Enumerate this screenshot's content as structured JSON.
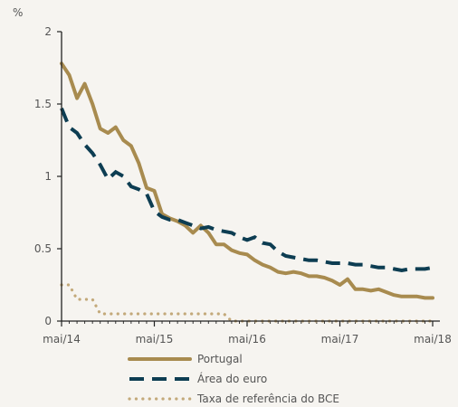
{
  "chart_data": {
    "type": "line",
    "unit": "%",
    "xlabel": "",
    "ylabel": "",
    "ylim": [
      0,
      2
    ],
    "y_ticks": [
      "0",
      "0.5",
      "1",
      "1.5",
      "2"
    ],
    "x_ticks": [
      "mai/14",
      "mai/15",
      "mai/16",
      "mai/17",
      "mai/18"
    ],
    "x_range_months": [
      "2014-05",
      "2018-05"
    ],
    "legend_placement": "bottom",
    "grid": false,
    "colors": {
      "portugal": "#a88b4f",
      "euro": "#0d3d52",
      "bce": "#c3a97a",
      "axis": "#222222"
    },
    "series": [
      {
        "name": "Portugal",
        "style": "solid",
        "x": [
          "2014-05",
          "2014-06",
          "2014-07",
          "2014-08",
          "2014-09",
          "2014-10",
          "2014-11",
          "2014-12",
          "2015-01",
          "2015-02",
          "2015-03",
          "2015-04",
          "2015-05",
          "2015-06",
          "2015-07",
          "2015-08",
          "2015-09",
          "2015-10",
          "2015-11",
          "2015-12",
          "2016-01",
          "2016-02",
          "2016-03",
          "2016-04",
          "2016-05",
          "2016-06",
          "2016-07",
          "2016-08",
          "2016-09",
          "2016-10",
          "2016-11",
          "2016-12",
          "2017-01",
          "2017-02",
          "2017-03",
          "2017-04",
          "2017-05",
          "2017-06",
          "2017-07",
          "2017-08",
          "2017-09",
          "2017-10",
          "2017-11",
          "2017-12",
          "2018-01",
          "2018-02",
          "2018-03",
          "2018-04",
          "2018-05"
        ],
        "values": [
          1.78,
          1.7,
          1.54,
          1.64,
          1.5,
          1.33,
          1.3,
          1.34,
          1.25,
          1.21,
          1.09,
          0.92,
          0.9,
          0.74,
          0.71,
          0.69,
          0.66,
          0.61,
          0.66,
          0.61,
          0.53,
          0.53,
          0.49,
          0.47,
          0.46,
          0.42,
          0.39,
          0.37,
          0.34,
          0.33,
          0.34,
          0.33,
          0.31,
          0.31,
          0.3,
          0.28,
          0.25,
          0.29,
          0.22,
          0.22,
          0.21,
          0.22,
          0.2,
          0.18,
          0.17,
          0.17,
          0.17,
          0.16,
          0.16
        ]
      },
      {
        "name": "Área do euro",
        "style": "dashed",
        "x": [
          "2014-05",
          "2014-06",
          "2014-07",
          "2014-08",
          "2014-09",
          "2014-10",
          "2014-11",
          "2014-12",
          "2015-01",
          "2015-02",
          "2015-03",
          "2015-04",
          "2015-05",
          "2015-06",
          "2015-07",
          "2015-08",
          "2015-09",
          "2015-10",
          "2015-11",
          "2015-12",
          "2016-01",
          "2016-02",
          "2016-03",
          "2016-04",
          "2016-05",
          "2016-06",
          "2016-07",
          "2016-08",
          "2016-09",
          "2016-10",
          "2016-11",
          "2016-12",
          "2017-01",
          "2017-02",
          "2017-03",
          "2017-04",
          "2017-05",
          "2017-06",
          "2017-07",
          "2017-08",
          "2017-09",
          "2017-10",
          "2017-11",
          "2017-12",
          "2018-01",
          "2018-02",
          "2018-03",
          "2018-04",
          "2018-05"
        ],
        "values": [
          1.47,
          1.34,
          1.3,
          1.22,
          1.16,
          1.08,
          0.98,
          1.03,
          1.0,
          0.93,
          0.91,
          0.88,
          0.76,
          0.72,
          0.7,
          0.7,
          0.68,
          0.66,
          0.64,
          0.65,
          0.63,
          0.62,
          0.61,
          0.58,
          0.56,
          0.58,
          0.54,
          0.53,
          0.48,
          0.45,
          0.44,
          0.43,
          0.42,
          0.42,
          0.41,
          0.4,
          0.4,
          0.4,
          0.39,
          0.39,
          0.38,
          0.37,
          0.37,
          0.36,
          0.35,
          0.36,
          0.36,
          0.36,
          0.37
        ]
      },
      {
        "name": "Taxa de referência do BCE",
        "style": "dotted",
        "x": [
          "2014-05",
          "2014-06",
          "2014-07",
          "2014-08",
          "2014-09",
          "2014-10",
          "2014-11",
          "2014-12",
          "2015-01",
          "2015-02",
          "2015-03",
          "2015-04",
          "2015-05",
          "2015-06",
          "2015-07",
          "2015-08",
          "2015-09",
          "2015-10",
          "2015-11",
          "2015-12",
          "2016-01",
          "2016-02",
          "2016-03",
          "2016-04",
          "2016-05",
          "2016-06",
          "2016-07",
          "2016-08",
          "2016-09",
          "2016-10",
          "2016-11",
          "2016-12",
          "2017-01",
          "2017-02",
          "2017-03",
          "2017-04",
          "2017-05",
          "2017-06",
          "2017-07",
          "2017-08",
          "2017-09",
          "2017-10",
          "2017-11",
          "2017-12",
          "2018-01",
          "2018-02",
          "2018-03",
          "2018-04",
          "2018-05"
        ],
        "values": [
          0.25,
          0.25,
          0.15,
          0.15,
          0.15,
          0.05,
          0.05,
          0.05,
          0.05,
          0.05,
          0.05,
          0.05,
          0.05,
          0.05,
          0.05,
          0.05,
          0.05,
          0.05,
          0.05,
          0.05,
          0.05,
          0.05,
          0.0,
          0.0,
          0.0,
          0.0,
          0.0,
          0.0,
          0.0,
          0.0,
          0.0,
          0.0,
          0.0,
          0.0,
          0.0,
          0.0,
          0.0,
          0.0,
          0.0,
          0.0,
          0.0,
          0.0,
          0.0,
          0.0,
          0.0,
          0.0,
          0.0,
          0.0,
          0.0
        ]
      }
    ]
  }
}
